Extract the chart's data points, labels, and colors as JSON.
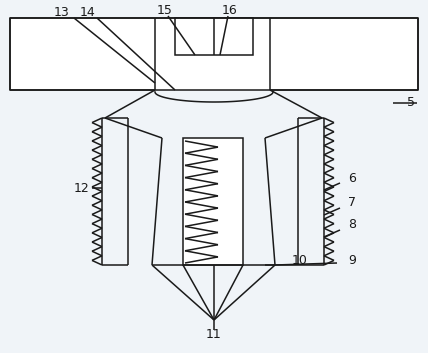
{
  "bg_color": "#f0f4f8",
  "line_color": "#1a1a1a",
  "line_width": 1.1,
  "fig_width": 4.28,
  "fig_height": 3.53,
  "dpi": 100
}
